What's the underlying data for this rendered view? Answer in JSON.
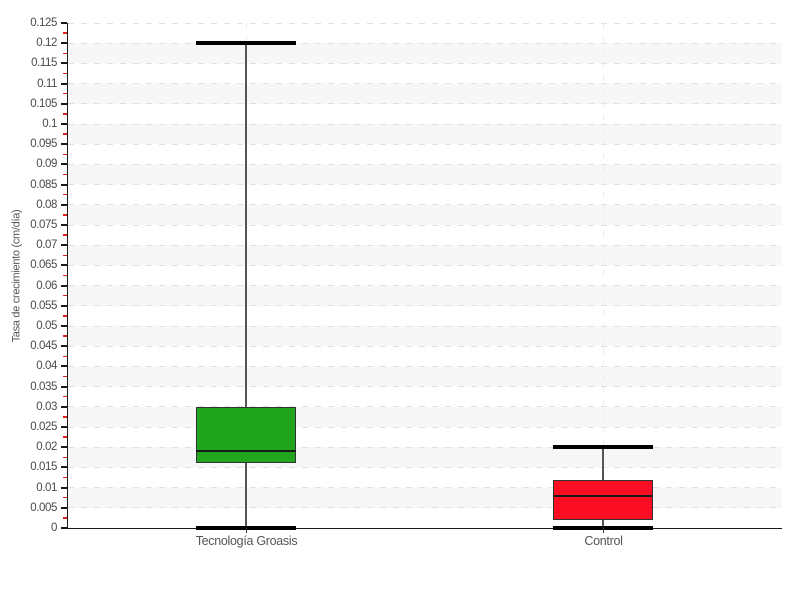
{
  "chart_data": {
    "type": "boxplot",
    "title": "",
    "xlabel": "",
    "ylabel": "Tasa de crecimiento (cm/día)",
    "ylim": [
      0,
      0.125
    ],
    "ytick_step": 0.005,
    "minor_tick_step": 0.0025,
    "ytick_labels": [
      "0",
      "0.005",
      "0.01",
      "0.015",
      "0.02",
      "0.025",
      "0.03",
      "0.035",
      "0.04",
      "0.045",
      "0.05",
      "0.055",
      "0.06",
      "0.065",
      "0.07",
      "0.075",
      "0.08",
      "0.085",
      "0.09",
      "0.095",
      "0.1",
      "0.105",
      "0.11",
      "0.115",
      "0.12",
      "0.125"
    ],
    "categories": [
      "Tecnología Groasis",
      "Control"
    ],
    "series": [
      {
        "name": "Tecnología Groasis",
        "min": 0,
        "q1": 0.016,
        "median": 0.019,
        "q3": 0.03,
        "max": 0.12,
        "fill": "#22a51e"
      },
      {
        "name": "Control",
        "min": 0,
        "q1": 0.002,
        "median": 0.008,
        "q3": 0.012,
        "max": 0.02,
        "fill": "#fb0e24"
      }
    ],
    "grid": true,
    "legend": false,
    "colors": {
      "background": "#ffffff",
      "band": "#f7f7f7",
      "gridline": "#e0e0e0",
      "axis": "#1a1a1a",
      "tick_label": "#4a4a4a",
      "minor_tick": "#e02020",
      "whisker_stem": "#555555",
      "whisker_cap": "#000000",
      "box_border": "#333333",
      "median_line": "#1a1a1a"
    }
  }
}
